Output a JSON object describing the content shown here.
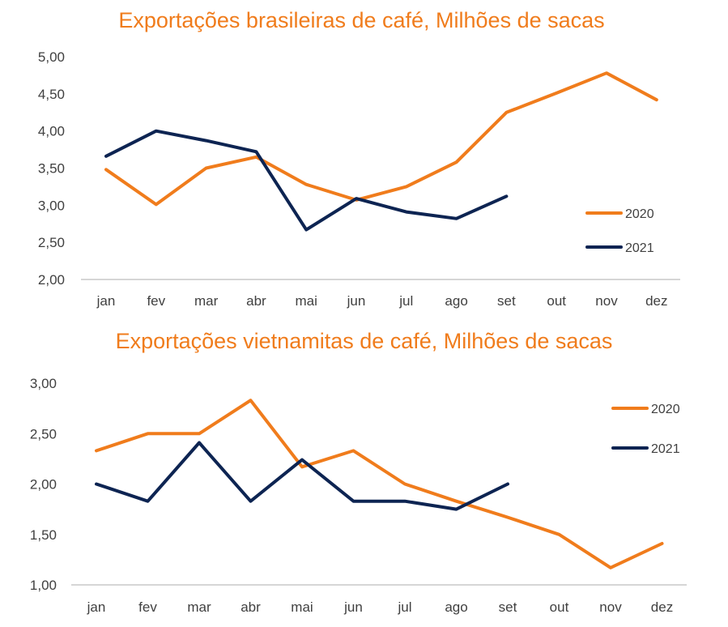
{
  "chart_data": [
    {
      "type": "line",
      "title": "Exportações brasileiras de café, Milhões de sacas",
      "categories": [
        "jan",
        "fev",
        "mar",
        "abr",
        "mai",
        "jun",
        "jul",
        "ago",
        "set",
        "out",
        "nov",
        "dez"
      ],
      "ylim": [
        2.0,
        5.0
      ],
      "yticks": [
        "2,00",
        "2,50",
        "3,00",
        "3,50",
        "4,00",
        "4,50",
        "5,00"
      ],
      "ytick_values": [
        2.0,
        2.5,
        3.0,
        3.5,
        4.0,
        4.5,
        5.0
      ],
      "legend_position": "right",
      "series": [
        {
          "name": "2020",
          "color": "#f07c1c",
          "values": [
            3.48,
            3.01,
            3.5,
            3.65,
            3.28,
            3.07,
            3.25,
            3.58,
            4.25,
            4.51,
            4.78,
            4.42
          ]
        },
        {
          "name": "2021",
          "color": "#0d2452",
          "values": [
            3.66,
            4.0,
            3.87,
            3.72,
            2.67,
            3.09,
            2.91,
            2.82,
            3.12,
            null,
            null,
            null
          ]
        }
      ]
    },
    {
      "type": "line",
      "title": "Exportações vietnamitas de café, Milhões de sacas",
      "categories": [
        "jan",
        "fev",
        "mar",
        "abr",
        "mai",
        "jun",
        "jul",
        "ago",
        "set",
        "out",
        "nov",
        "dez"
      ],
      "ylim": [
        1.0,
        3.0
      ],
      "yticks": [
        "1,00",
        "1,50",
        "2,00",
        "2,50",
        "3,00"
      ],
      "ytick_values": [
        1.0,
        1.5,
        2.0,
        2.5,
        3.0
      ],
      "legend_position": "top-right",
      "series": [
        {
          "name": "2020",
          "color": "#f07c1c",
          "values": [
            2.33,
            2.5,
            2.5,
            2.83,
            2.17,
            2.33,
            2.0,
            1.83,
            1.67,
            1.5,
            1.17,
            1.41
          ]
        },
        {
          "name": "2021",
          "color": "#0d2452",
          "values": [
            2.0,
            1.83,
            2.41,
            1.83,
            2.24,
            1.83,
            1.83,
            1.75,
            2.0,
            null,
            null,
            null
          ]
        }
      ]
    }
  ]
}
